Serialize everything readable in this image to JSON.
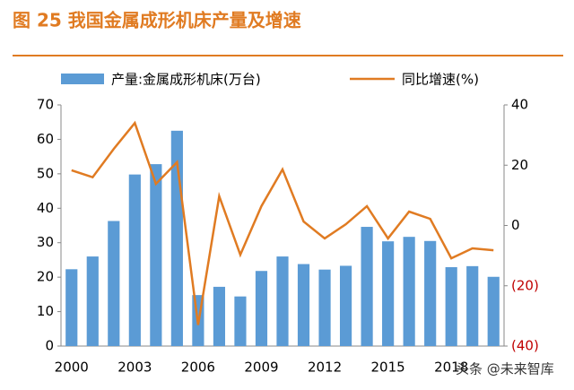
{
  "chart_data": {
    "type": "bar_line",
    "title": "图 25 我国金属成形机床产量及增速",
    "categories": [
      "2000",
      null,
      null,
      "2003",
      null,
      null,
      "2006",
      null,
      null,
      "2009",
      null,
      null,
      "2012",
      null,
      null,
      "2015",
      null,
      null,
      "2018",
      null,
      null
    ],
    "series": [
      {
        "name": "产量:金属成形机床(万台)",
        "type": "bar",
        "color": "#5b9bd5",
        "values": [
          22.3,
          26,
          36.3,
          49.8,
          52.8,
          62.5,
          14.8,
          17.2,
          14.4,
          21.8,
          26,
          23.8,
          22.2,
          23.3,
          34.6,
          30.4,
          31.7,
          30.5,
          22.9,
          23.2,
          20.1
        ]
      },
      {
        "name": "同比增速(%)",
        "type": "line",
        "axis": "y2",
        "color": "#e07b22",
        "values": [
          18.3,
          16,
          25.4,
          34,
          13.8,
          21,
          -33,
          9.7,
          -9.7,
          6.4,
          18.6,
          1.3,
          -4.3,
          0.4,
          6.4,
          -4.3,
          4.6,
          2.2,
          -10.9,
          -7.6,
          -8.2
        ]
      }
    ],
    "ylim": [
      0,
      70
    ],
    "yticks": [
      0,
      10,
      20,
      30,
      40,
      50,
      60,
      70
    ],
    "y2lim": [
      -40,
      40
    ],
    "y2ticks": [
      {
        "value": -40,
        "label": "(40)"
      },
      {
        "value": -20,
        "label": "(20)"
      },
      0,
      20,
      40
    ],
    "y2_negative_tick_color": "#c00000",
    "watermark": "头条 @未来智库"
  }
}
